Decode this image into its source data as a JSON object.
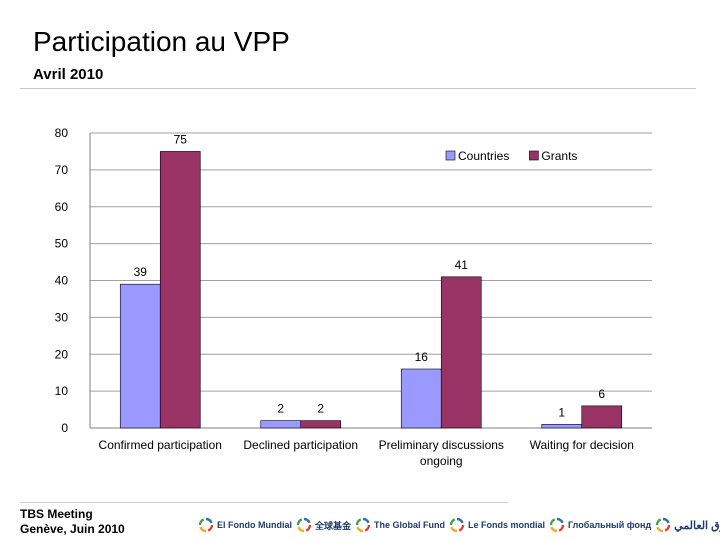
{
  "header": {
    "title": "Participation au VPP",
    "subtitle": "Avril 2010"
  },
  "footer": {
    "line1": "TBS Meeting",
    "line2": "Genève, Juin 2010"
  },
  "logos": [
    {
      "name": "El Fondo Mundial",
      "icon": "global-fund-swirl-icon"
    },
    {
      "name": "全球基金",
      "icon": "global-fund-swirl-icon"
    },
    {
      "name": "The Global Fund",
      "icon": "global-fund-swirl-icon"
    },
    {
      "name": "Le Fonds mondial",
      "icon": "global-fund-swirl-icon"
    },
    {
      "name": "Глобальный фонд",
      "icon": "global-fund-swirl-icon"
    },
    {
      "name": "الصندوق العالمي",
      "icon": "global-fund-swirl-icon"
    }
  ],
  "chart_data": {
    "type": "bar",
    "title": "",
    "xlabel": "",
    "ylabel": "",
    "ylim": [
      0,
      80
    ],
    "yticks": [
      0,
      10,
      20,
      30,
      40,
      50,
      60,
      70,
      80
    ],
    "grid": true,
    "legend_position": "top-right",
    "categories": [
      [
        "Confirmed participation"
      ],
      [
        "Declined participation"
      ],
      [
        "Preliminary discussions",
        "ongoing"
      ],
      [
        "Waiting for decision"
      ]
    ],
    "series": [
      {
        "name": "Countries",
        "color": "#9999ff",
        "values": [
          39,
          2,
          16,
          1
        ]
      },
      {
        "name": "Grants",
        "color": "#993366",
        "values": [
          75,
          2,
          41,
          6
        ]
      }
    ]
  }
}
